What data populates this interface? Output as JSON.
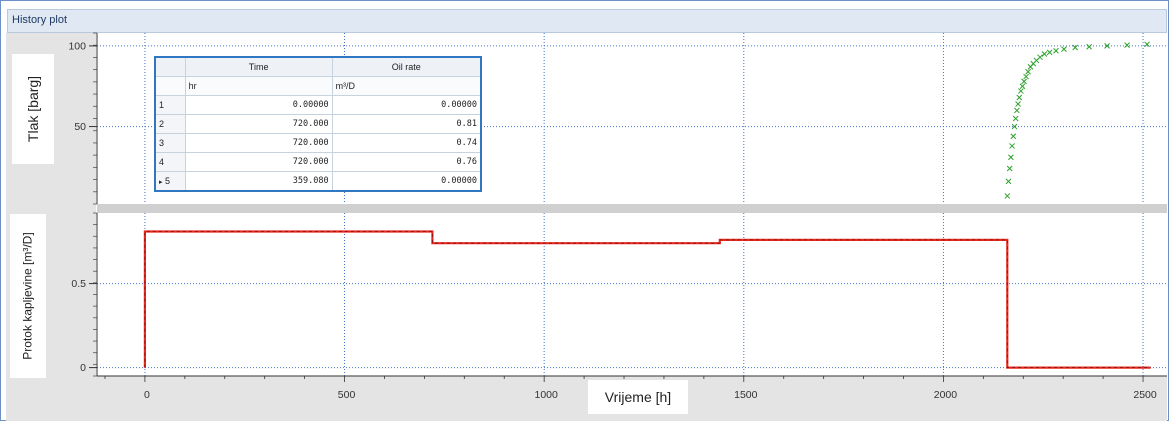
{
  "window": {
    "title": "History plot"
  },
  "colors": {
    "pressure_marker": "#2ca02c",
    "rate_line": "#e8281e",
    "grid": "#3f73c8",
    "frame": "#6e90c8"
  },
  "table": {
    "headers": [
      "Time",
      "Oil rate"
    ],
    "units": [
      "hr",
      "m³/D"
    ],
    "rows": [
      {
        "index": "1",
        "time": "0.00000",
        "rate": "0.00000"
      },
      {
        "index": "2",
        "time": "720.000",
        "rate": "0.81"
      },
      {
        "index": "3",
        "time": "720.000",
        "rate": "0.74"
      },
      {
        "index": "4",
        "time": "720.000",
        "rate": "0.76"
      },
      {
        "index": "5",
        "time": "359.080",
        "rate": "0.00000"
      }
    ],
    "selected_row_marker": "▸"
  },
  "chart_data": [
    {
      "type": "scatter",
      "ylabel": "Tlak [barg]",
      "xlim": [
        -120,
        2560
      ],
      "ylim": [
        2,
        108
      ],
      "yticks": [
        "100",
        "50"
      ],
      "ytick_values": [
        100,
        50
      ],
      "grid": true,
      "marker": "x",
      "series": [
        {
          "points": [
            [
              2160,
              7
            ],
            [
              2163,
              16
            ],
            [
              2166,
              24
            ],
            [
              2169,
              31
            ],
            [
              2172,
              38
            ],
            [
              2175,
              44
            ],
            [
              2178,
              50
            ],
            [
              2181,
              55
            ],
            [
              2184,
              60
            ],
            [
              2187,
              64
            ],
            [
              2190,
              68
            ],
            [
              2194,
              72
            ],
            [
              2198,
              75
            ],
            [
              2202,
              78
            ],
            [
              2207,
              81
            ],
            [
              2212,
              84
            ],
            [
              2218,
              87
            ],
            [
              2225,
              89
            ],
            [
              2233,
              91
            ],
            [
              2242,
              93
            ],
            [
              2253,
              95
            ],
            [
              2266,
              96
            ],
            [
              2282,
              97
            ],
            [
              2302,
              98
            ],
            [
              2330,
              99
            ],
            [
              2365,
              99.5
            ],
            [
              2410,
              100
            ],
            [
              2460,
              100.5
            ],
            [
              2510,
              101
            ]
          ]
        }
      ]
    },
    {
      "type": "line",
      "ylabel": "Protok kapljevine [m³/D]",
      "xlabel": "Vrijeme [h]",
      "xlim": [
        -120,
        2560
      ],
      "ylim": [
        -0.05,
        0.92
      ],
      "xticks": [
        "0",
        "500",
        "1000",
        "1500",
        "2000",
        "2500"
      ],
      "xtick_values": [
        0,
        500,
        1000,
        1500,
        2000,
        2500
      ],
      "yticks": [
        "0.5",
        "0"
      ],
      "ytick_values": [
        0.5,
        0
      ],
      "grid": true,
      "step": true,
      "series": [
        {
          "x": [
            0,
            0,
            720,
            720,
            1440,
            1440,
            2160,
            2160,
            2519
          ],
          "y": [
            0,
            0.81,
            0.81,
            0.74,
            0.74,
            0.76,
            0.76,
            0,
            0
          ]
        }
      ]
    }
  ]
}
